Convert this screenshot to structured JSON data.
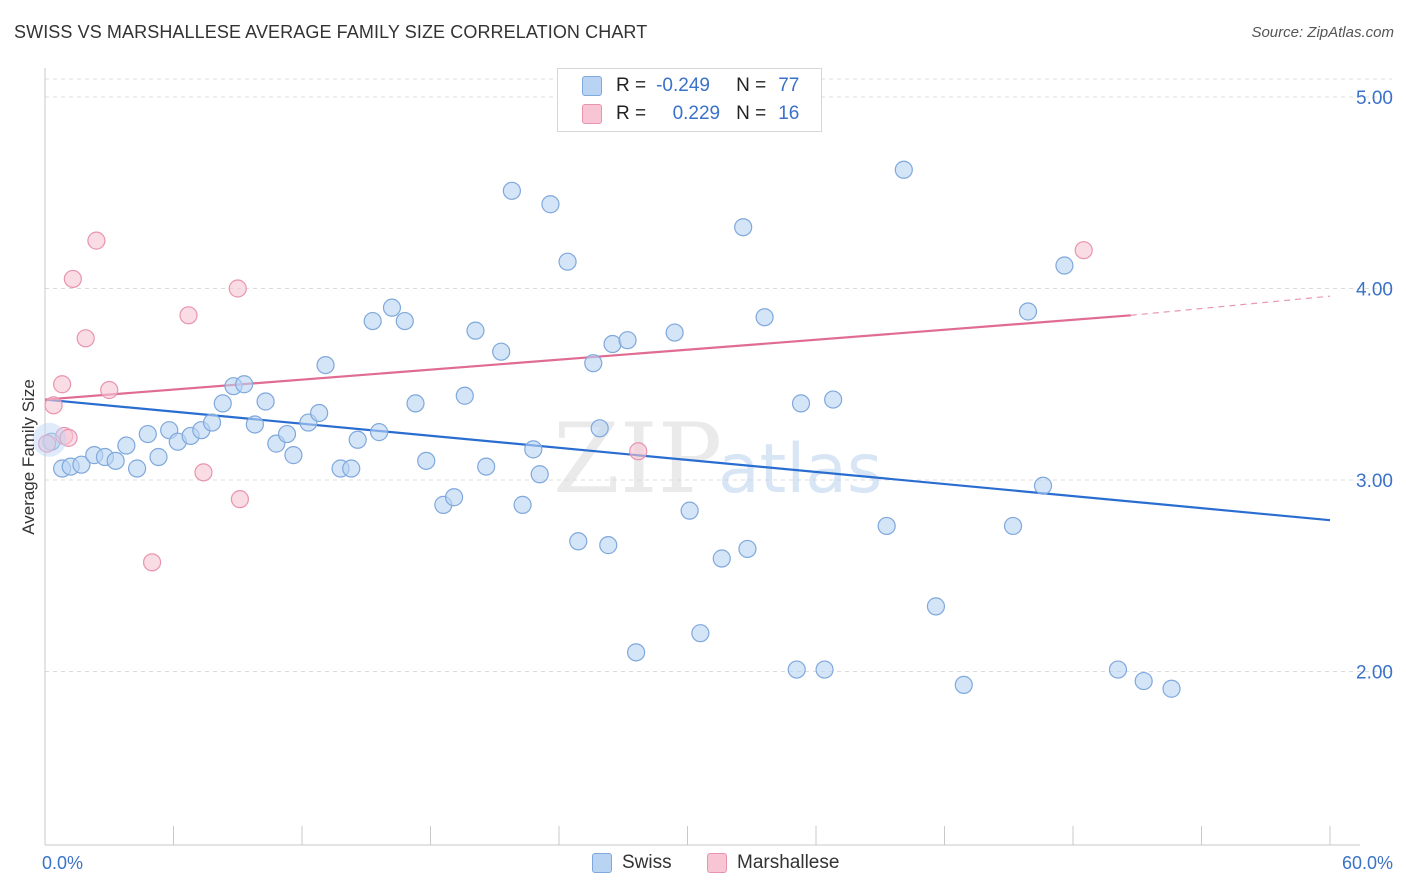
{
  "title": "SWISS VS MARSHALLESE AVERAGE FAMILY SIZE CORRELATION CHART",
  "source": "Source: ZipAtlas.com",
  "watermark": {
    "zip": "ZIP",
    "atlas": "atlas"
  },
  "legend": {
    "r_label": "R =",
    "n_label": "N =",
    "rows": [
      {
        "r": "-0.249",
        "n": "77"
      },
      {
        "r": "0.229",
        "n": "16"
      }
    ]
  },
  "colors": {
    "swiss_fill": "#b9d3f3",
    "swiss_stroke": "#7fa8dc",
    "swiss_line": "#2a6dd0",
    "marsh_fill": "#f7c5d4",
    "marsh_stroke": "#e894af",
    "marsh_line": "#e06b93",
    "tick_label": "#3a72c8",
    "grid": "#dcdcdc"
  },
  "chart_data": {
    "type": "scatter",
    "title": "SWISS VS MARSHALLESE AVERAGE FAMILY SIZE CORRELATION CHART",
    "xlabel": "",
    "ylabel": "Average Family Size",
    "xlim": [
      0,
      60
    ],
    "ylim": [
      1.0,
      5.1
    ],
    "x_tick_labels": [
      "0.0%",
      "60.0%"
    ],
    "y_ticks": [
      2.0,
      3.0,
      4.0,
      5.0
    ],
    "y_tick_labels": [
      "2.00",
      "3.00",
      "4.00",
      "5.00"
    ],
    "grid": true,
    "legend_position": "top-center",
    "series": [
      {
        "name": "Swiss",
        "r": -0.249,
        "n": 77,
        "trend": {
          "x": [
            0,
            60
          ],
          "y": [
            3.42,
            2.79
          ]
        },
        "points": [
          [
            0.3,
            3.2
          ],
          [
            0.8,
            3.06
          ],
          [
            1.2,
            3.07
          ],
          [
            1.7,
            3.08
          ],
          [
            2.3,
            3.13
          ],
          [
            2.8,
            3.12
          ],
          [
            3.3,
            3.1
          ],
          [
            3.8,
            3.18
          ],
          [
            4.3,
            3.06
          ],
          [
            4.8,
            3.24
          ],
          [
            5.3,
            3.12
          ],
          [
            5.8,
            3.26
          ],
          [
            6.2,
            3.2
          ],
          [
            6.8,
            3.23
          ],
          [
            7.3,
            3.26
          ],
          [
            7.8,
            3.3
          ],
          [
            8.3,
            3.4
          ],
          [
            8.8,
            3.49
          ],
          [
            9.3,
            3.5
          ],
          [
            9.8,
            3.29
          ],
          [
            10.3,
            3.41
          ],
          [
            10.8,
            3.19
          ],
          [
            11.3,
            3.24
          ],
          [
            11.6,
            3.13
          ],
          [
            12.3,
            3.3
          ],
          [
            12.8,
            3.35
          ],
          [
            13.1,
            3.6
          ],
          [
            13.8,
            3.06
          ],
          [
            14.3,
            3.06
          ],
          [
            14.6,
            3.21
          ],
          [
            15.3,
            3.83
          ],
          [
            15.6,
            3.25
          ],
          [
            16.2,
            3.9
          ],
          [
            16.8,
            3.83
          ],
          [
            17.3,
            3.4
          ],
          [
            17.8,
            3.1
          ],
          [
            18.6,
            2.87
          ],
          [
            19.1,
            2.91
          ],
          [
            19.6,
            3.44
          ],
          [
            20.1,
            3.78
          ],
          [
            20.6,
            3.07
          ],
          [
            21.3,
            3.67
          ],
          [
            21.8,
            4.51
          ],
          [
            22.3,
            2.87
          ],
          [
            22.8,
            3.16
          ],
          [
            23.1,
            3.03
          ],
          [
            23.6,
            4.44
          ],
          [
            24.4,
            4.14
          ],
          [
            24.9,
            2.68
          ],
          [
            25.6,
            3.61
          ],
          [
            25.9,
            3.27
          ],
          [
            26.3,
            2.66
          ],
          [
            26.5,
            3.71
          ],
          [
            27.2,
            3.73
          ],
          [
            27.6,
            2.1
          ],
          [
            29.4,
            3.77
          ],
          [
            30.1,
            2.84
          ],
          [
            30.6,
            2.2
          ],
          [
            31.6,
            2.59
          ],
          [
            32.6,
            4.32
          ],
          [
            32.8,
            2.64
          ],
          [
            33.6,
            3.85
          ],
          [
            35.1,
            2.01
          ],
          [
            35.3,
            3.4
          ],
          [
            36.4,
            2.01
          ],
          [
            36.8,
            3.42
          ],
          [
            39.3,
            2.76
          ],
          [
            40.1,
            4.62
          ],
          [
            41.6,
            2.34
          ],
          [
            42.9,
            1.93
          ],
          [
            45.2,
            2.76
          ],
          [
            45.9,
            3.88
          ],
          [
            46.6,
            2.97
          ],
          [
            47.6,
            4.12
          ],
          [
            50.1,
            2.01
          ],
          [
            51.3,
            1.95
          ],
          [
            52.6,
            1.91
          ]
        ]
      },
      {
        "name": "Marshallese",
        "r": 0.229,
        "n": 16,
        "trend": {
          "x": [
            0,
            50.7
          ],
          "y": [
            3.42,
            3.86
          ]
        },
        "trend_dashed": {
          "x": [
            50.7,
            60
          ],
          "y": [
            3.86,
            3.96
          ]
        },
        "points": [
          [
            0.1,
            3.19
          ],
          [
            0.4,
            3.39
          ],
          [
            0.9,
            3.23
          ],
          [
            0.8,
            3.5
          ],
          [
            1.1,
            3.22
          ],
          [
            1.3,
            4.05
          ],
          [
            1.9,
            3.74
          ],
          [
            2.4,
            4.25
          ],
          [
            3.0,
            3.47
          ],
          [
            5.0,
            2.57
          ],
          [
            6.7,
            3.86
          ],
          [
            7.4,
            3.04
          ],
          [
            9.0,
            4.0
          ],
          [
            9.1,
            2.9
          ],
          [
            27.7,
            3.15
          ],
          [
            48.5,
            4.2
          ]
        ]
      }
    ]
  }
}
